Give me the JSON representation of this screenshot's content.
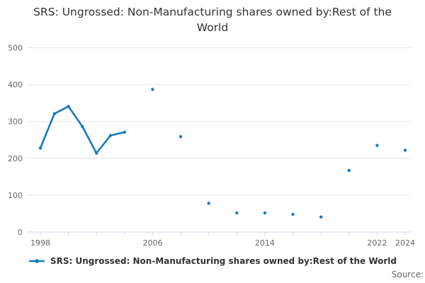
{
  "chart_data": {
    "type": "line",
    "title": "SRS: Ungrossed: Non-Manufacturing shares owned by:Rest of the World",
    "xlabel": "",
    "ylabel": "",
    "ylim": [
      0,
      500
    ],
    "y_ticks": [
      0,
      100,
      200,
      300,
      400,
      500
    ],
    "x_ticks": [
      1998,
      2000,
      2002,
      2004,
      2006,
      2008,
      2010,
      2012,
      2014,
      2016,
      2018,
      2020,
      2022,
      2024
    ],
    "x_labeled_ticks": [
      1998,
      2006,
      2014,
      2022,
      2024
    ],
    "grid": true,
    "legend_position": "bottom",
    "series": [
      {
        "name": "SRS: Ungrossed: Non-Manufacturing shares owned by:Rest of the World",
        "color": "#1779c1",
        "points": [
          [
            1998,
            228
          ],
          [
            1999,
            321
          ],
          [
            2000,
            341
          ],
          [
            2001,
            286
          ],
          [
            2002,
            214
          ],
          [
            2003,
            262
          ],
          [
            2004,
            271
          ],
          [
            2006,
            387
          ],
          [
            2008,
            259
          ],
          [
            2010,
            78
          ],
          [
            2012,
            52
          ],
          [
            2014,
            52
          ],
          [
            2016,
            48
          ],
          [
            2018,
            41
          ],
          [
            2020,
            167
          ],
          [
            2022,
            235
          ],
          [
            2024,
            222
          ]
        ]
      }
    ],
    "colors": {
      "series": "#1779c1",
      "grid": "#e6e6e6",
      "axis": "#ccd6eb",
      "tick_label": "#666666",
      "title": "#333333",
      "legend_text": "#333333",
      "source_text": "#666666"
    }
  },
  "footer": {
    "source_label": "Source:"
  }
}
